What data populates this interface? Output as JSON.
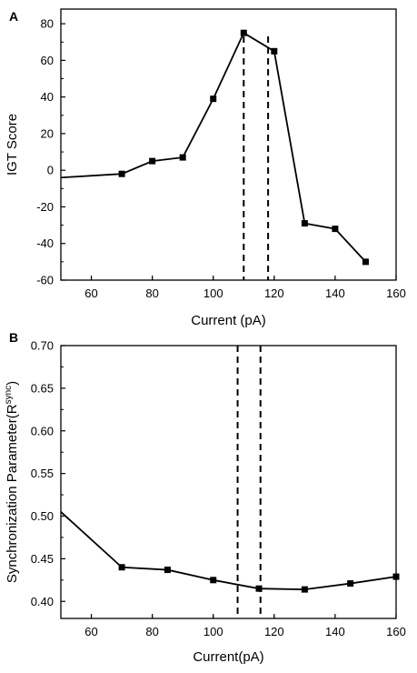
{
  "chart_data": [
    {
      "panel_label": "A",
      "type": "line",
      "xlabel": "Current (pA)",
      "ylabel": "IGT Score",
      "xlim": [
        50,
        160
      ],
      "ylim": [
        -60,
        88
      ],
      "x_ticks": [
        60,
        80,
        100,
        120,
        140,
        160
      ],
      "y_ticks": [
        -60,
        -40,
        -20,
        0,
        20,
        40,
        60,
        80
      ],
      "line_start": {
        "x": 50,
        "y": -4
      },
      "points": [
        {
          "x": 70,
          "y": -2
        },
        {
          "x": 80,
          "y": 5
        },
        {
          "x": 90,
          "y": 7
        },
        {
          "x": 100,
          "y": 39
        },
        {
          "x": 110,
          "y": 75
        },
        {
          "x": 120,
          "y": 65
        },
        {
          "x": 130,
          "y": -29
        },
        {
          "x": 140,
          "y": -32
        },
        {
          "x": 150,
          "y": -50
        }
      ],
      "vlines": [
        110,
        118
      ],
      "grid": false
    },
    {
      "panel_label": "B",
      "type": "line",
      "xlabel": "Current(pA)",
      "ylabel": "Synchronization Parameter(R",
      "ylabel_sup": "sync",
      "ylabel_close": ")",
      "xlim": [
        50,
        160
      ],
      "ylim": [
        0.38,
        0.7
      ],
      "x_ticks": [
        60,
        80,
        100,
        120,
        140,
        160
      ],
      "y_ticks": [
        0.4,
        0.45,
        0.5,
        0.55,
        0.6,
        0.65,
        0.7
      ],
      "y_tick_labels": [
        "0.40",
        "0.45",
        "0.50",
        "0.55",
        "0.60",
        "0.65",
        "0.70"
      ],
      "line_start": {
        "x": 50,
        "y": 0.505
      },
      "points": [
        {
          "x": 70,
          "y": 0.44
        },
        {
          "x": 85,
          "y": 0.437
        },
        {
          "x": 100,
          "y": 0.425
        },
        {
          "x": 115,
          "y": 0.415
        },
        {
          "x": 130,
          "y": 0.414
        },
        {
          "x": 145,
          "y": 0.421
        },
        {
          "x": 160,
          "y": 0.429
        }
      ],
      "vlines": [
        108,
        115.5
      ],
      "grid": false
    }
  ]
}
